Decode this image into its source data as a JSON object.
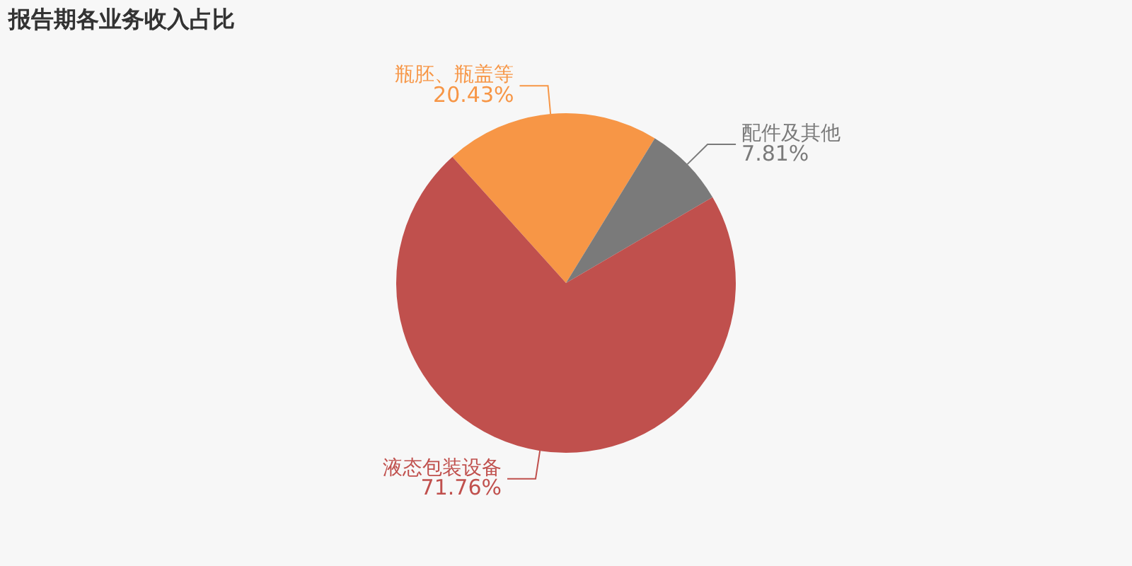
{
  "chart_data": {
    "type": "pie",
    "title": "报告期各业务收入占比",
    "categories": [
      "瓶胚、瓶盖等",
      "配件及其他",
      "液态包装设备"
    ],
    "values": [
      20.43,
      7.81,
      71.76
    ],
    "colors": [
      "#f79646",
      "#7a7a7a",
      "#c0504d"
    ],
    "value_labels": [
      "20.43%",
      "7.81%",
      "71.76%"
    ],
    "legend": false
  }
}
